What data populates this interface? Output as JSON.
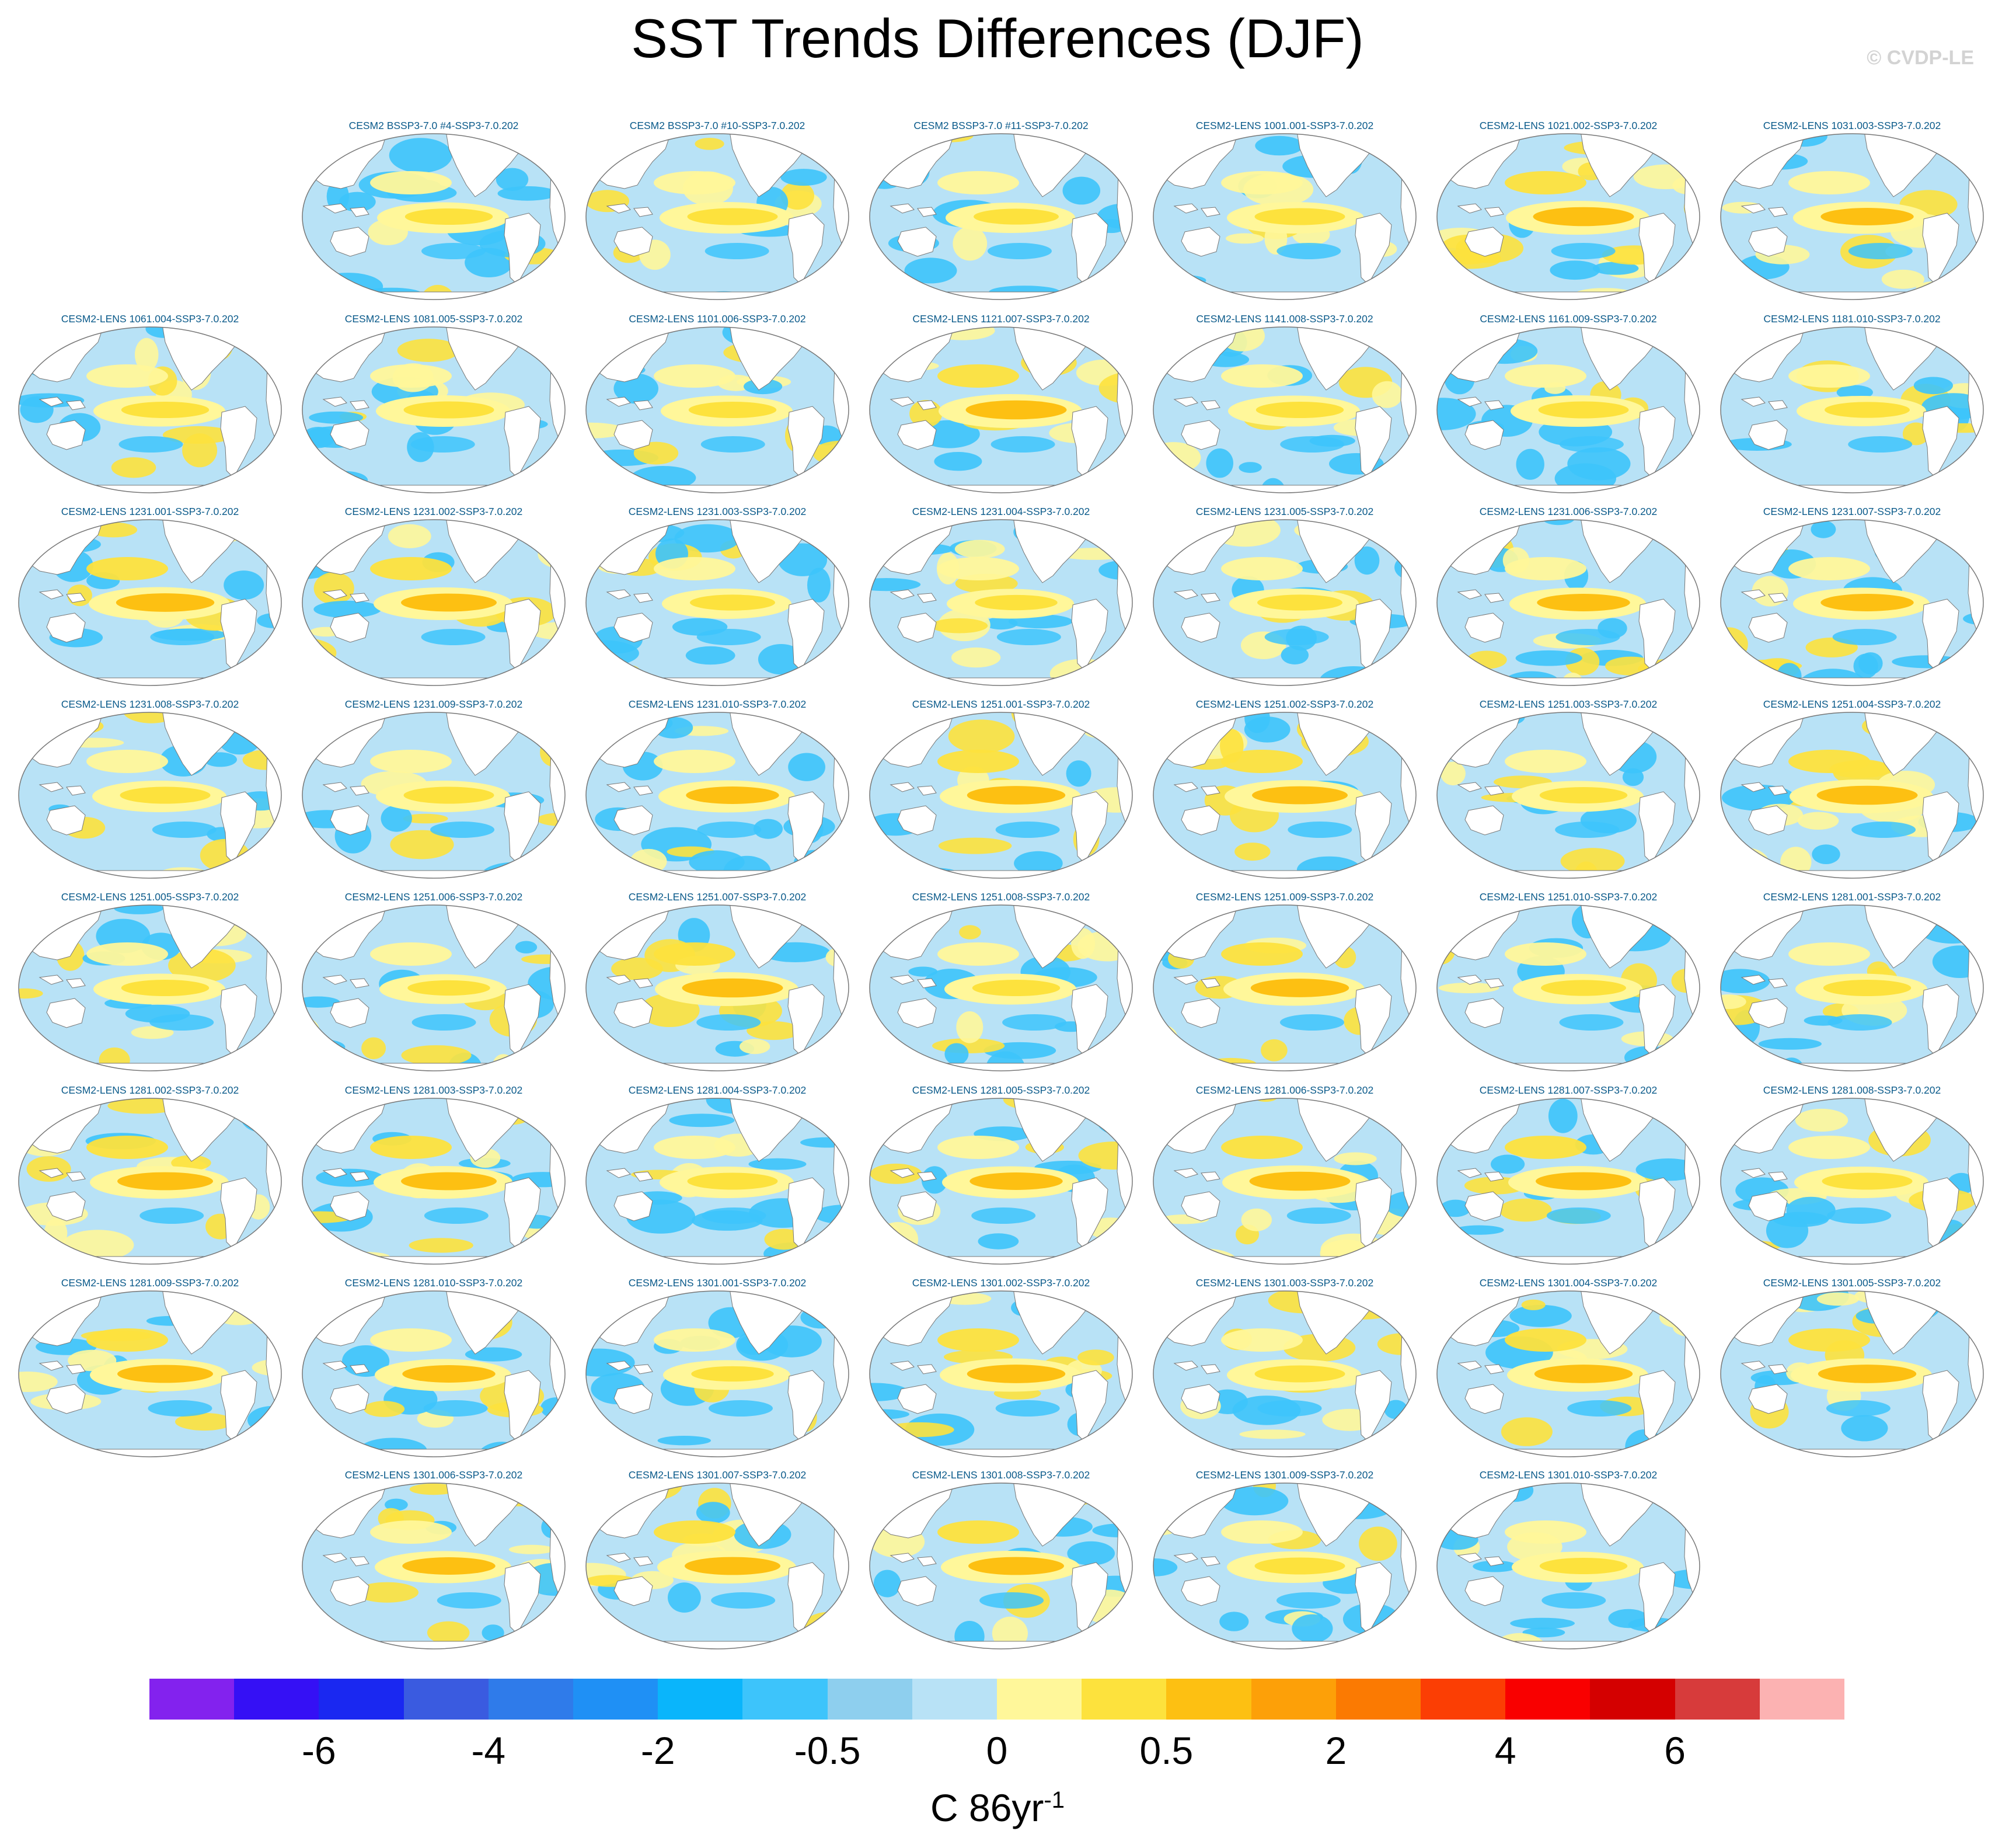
{
  "title": "SST Trends Differences (DJF)",
  "credit": "© CVDP-LE",
  "colorbar": {
    "colors": [
      "#8322ee",
      "#3510f5",
      "#1a28f1",
      "#3a5be0",
      "#2f7bea",
      "#1f90f5",
      "#0ab5fb",
      "#3dc4fb",
      "#8ecfee",
      "#b8e2f6",
      "#fff79a",
      "#fde23d",
      "#fdc012",
      "#fda008",
      "#fb7a02",
      "#fb3e04",
      "#f90000",
      "#d40000",
      "#d73b3b",
      "#fcb2b2"
    ],
    "tick_labels": [
      "-6",
      "-4",
      "-2",
      "-0.5",
      "0",
      "0.5",
      "2",
      "4",
      "6"
    ],
    "units_main": "C 86yr",
    "units_sup": "-1"
  },
  "map_colors": {
    "ocean_base": "#b8e2f6",
    "strong_blue": "#3dc4fb",
    "light_yellow": "#fff79a",
    "yellow": "#fde23d",
    "orange": "#fdc012",
    "land": "#ffffff",
    "outline": "#777777"
  },
  "panels": [
    {
      "label": "CESM2 BSSP3-7.0 #4-SSP3-7.0.202",
      "warm": 0.45
    },
    {
      "label": "CESM2 BSSP3-7.0 #10-SSP3-7.0.202",
      "warm": 0.5
    },
    {
      "label": "CESM2 BSSP3-7.0 #11-SSP3-7.0.202",
      "warm": 0.4
    },
    {
      "label": "CESM2-LENS 1001.001-SSP3-7.0.202",
      "warm": 0.5
    },
    {
      "label": "CESM2-LENS 1021.002-SSP3-7.0.202",
      "warm": 0.7
    },
    {
      "label": "CESM2-LENS 1031.003-SSP3-7.0.202",
      "warm": 0.55
    },
    {
      "label": "CESM2-LENS 1061.004-SSP3-7.0.202",
      "warm": 0.45
    },
    {
      "label": "CESM2-LENS 1081.005-SSP3-7.0.202",
      "warm": 0.5
    },
    {
      "label": "CESM2-LENS 1101.006-SSP3-7.0.202",
      "warm": 0.45
    },
    {
      "label": "CESM2-LENS 1121.007-SSP3-7.0.202",
      "warm": 0.7
    },
    {
      "label": "CESM2-LENS 1141.008-SSP3-7.0.202",
      "warm": 0.45
    },
    {
      "label": "CESM2-LENS 1161.009-SSP3-7.0.202",
      "warm": 0.5
    },
    {
      "label": "CESM2-LENS 1181.010-SSP3-7.0.202",
      "warm": 0.4
    },
    {
      "label": "CESM2-LENS 1231.001-SSP3-7.0.202",
      "warm": 0.65
    },
    {
      "label": "CESM2-LENS 1231.002-SSP3-7.0.202",
      "warm": 0.6
    },
    {
      "label": "CESM2-LENS 1231.003-SSP3-7.0.202",
      "warm": 0.4
    },
    {
      "label": "CESM2-LENS 1231.004-SSP3-7.0.202",
      "warm": 0.35
    },
    {
      "label": "CESM2-LENS 1231.005-SSP3-7.0.202",
      "warm": 0.4
    },
    {
      "label": "CESM2-LENS 1231.006-SSP3-7.0.202",
      "warm": 0.55
    },
    {
      "label": "CESM2-LENS 1231.007-SSP3-7.0.202",
      "warm": 0.55
    },
    {
      "label": "CESM2-LENS 1231.008-SSP3-7.0.202",
      "warm": 0.5
    },
    {
      "label": "CESM2-LENS 1231.009-SSP3-7.0.202",
      "warm": 0.5
    },
    {
      "label": "CESM2-LENS 1231.010-SSP3-7.0.202",
      "warm": 0.55
    },
    {
      "label": "CESM2-LENS 1251.001-SSP3-7.0.202",
      "warm": 0.65
    },
    {
      "label": "CESM2-LENS 1251.002-SSP3-7.0.202",
      "warm": 0.6
    },
    {
      "label": "CESM2-LENS 1251.003-SSP3-7.0.202",
      "warm": 0.45
    },
    {
      "label": "CESM2-LENS 1251.004-SSP3-7.0.202",
      "warm": 0.7
    },
    {
      "label": "CESM2-LENS 1251.005-SSP3-7.0.202",
      "warm": 0.45
    },
    {
      "label": "CESM2-LENS 1251.006-SSP3-7.0.202",
      "warm": 0.35
    },
    {
      "label": "CESM2-LENS 1251.007-SSP3-7.0.202",
      "warm": 0.7
    },
    {
      "label": "CESM2-LENS 1251.008-SSP3-7.0.202",
      "warm": 0.45
    },
    {
      "label": "CESM2-LENS 1251.009-SSP3-7.0.202",
      "warm": 0.65
    },
    {
      "label": "CESM2-LENS 1251.010-SSP3-7.0.202",
      "warm": 0.4
    },
    {
      "label": "CESM2-LENS 1281.001-SSP3-7.0.202",
      "warm": 0.45
    },
    {
      "label": "CESM2-LENS 1281.002-SSP3-7.0.202",
      "warm": 0.6
    },
    {
      "label": "CESM2-LENS 1281.003-SSP3-7.0.202",
      "warm": 0.6
    },
    {
      "label": "CESM2-LENS 1281.004-SSP3-7.0.202",
      "warm": 0.5
    },
    {
      "label": "CESM2-LENS 1281.005-SSP3-7.0.202",
      "warm": 0.55
    },
    {
      "label": "CESM2-LENS 1281.006-SSP3-7.0.202",
      "warm": 0.7
    },
    {
      "label": "CESM2-LENS 1281.007-SSP3-7.0.202",
      "warm": 0.6
    },
    {
      "label": "CESM2-LENS 1281.008-SSP3-7.0.202",
      "warm": 0.5
    },
    {
      "label": "CESM2-LENS 1281.009-SSP3-7.0.202",
      "warm": 0.6
    },
    {
      "label": "CESM2-LENS 1281.010-SSP3-7.0.202",
      "warm": 0.55
    },
    {
      "label": "CESM2-LENS 1301.001-SSP3-7.0.202",
      "warm": 0.35
    },
    {
      "label": "CESM2-LENS 1301.002-SSP3-7.0.202",
      "warm": 0.65
    },
    {
      "label": "CESM2-LENS 1301.003-SSP3-7.0.202",
      "warm": 0.5
    },
    {
      "label": "CESM2-LENS 1301.004-SSP3-7.0.202",
      "warm": 0.65
    },
    {
      "label": "CESM2-LENS 1301.005-SSP3-7.0.202",
      "warm": 0.65
    },
    {
      "label": "CESM2-LENS 1301.006-SSP3-7.0.202",
      "warm": 0.55
    },
    {
      "label": "CESM2-LENS 1301.007-SSP3-7.0.202",
      "warm": 0.6
    },
    {
      "label": "CESM2-LENS 1301.008-SSP3-7.0.202",
      "warm": 0.6
    },
    {
      "label": "CESM2-LENS 1301.009-SSP3-7.0.202",
      "warm": 0.5
    },
    {
      "label": "CESM2-LENS 1301.010-SSP3-7.0.202",
      "warm": 0.45
    }
  ]
}
